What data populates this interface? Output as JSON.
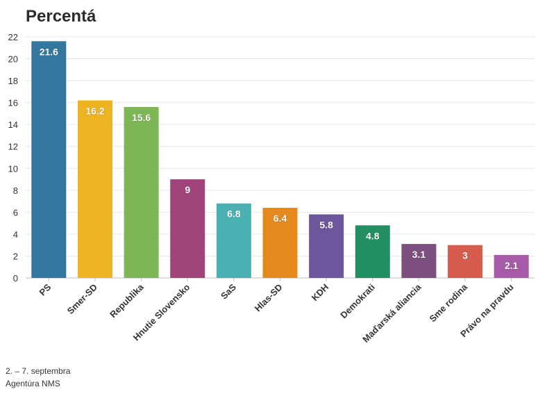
{
  "chart_data": {
    "type": "bar",
    "title": "Percentá",
    "categories": [
      "PS",
      "Smer-SD",
      "Republika",
      "Hnutie Slovensko",
      "SaS",
      "Hlas-SD",
      "KDH",
      "Demokrati",
      "Maďarská aliancia",
      "Sme rodina",
      "Právo na pravdu"
    ],
    "values": [
      21.6,
      16.2,
      15.6,
      9,
      6.8,
      6.4,
      5.8,
      4.8,
      3.1,
      3,
      2.1
    ],
    "data_labels": [
      "21.6",
      "16.2",
      "15.6",
      "9",
      "6.8",
      "6.4",
      "5.8",
      "4.8",
      "3.1",
      "3",
      "2.1"
    ],
    "colors": [
      "#33779f",
      "#edb321",
      "#7fb655",
      "#a0437a",
      "#4bb0b1",
      "#e5891f",
      "#6e569c",
      "#248e63",
      "#7d4f7f",
      "#d65c4d",
      "#a75aa7"
    ],
    "yticks": [
      "0",
      "2",
      "4",
      "6",
      "8",
      "10",
      "12",
      "14",
      "16",
      "18",
      "20",
      "22"
    ],
    "ylim": [
      0,
      22
    ],
    "grid": true,
    "legend": "none"
  },
  "footer": {
    "date": "2. – 7. septembra",
    "source": "Agentúra NMS"
  }
}
